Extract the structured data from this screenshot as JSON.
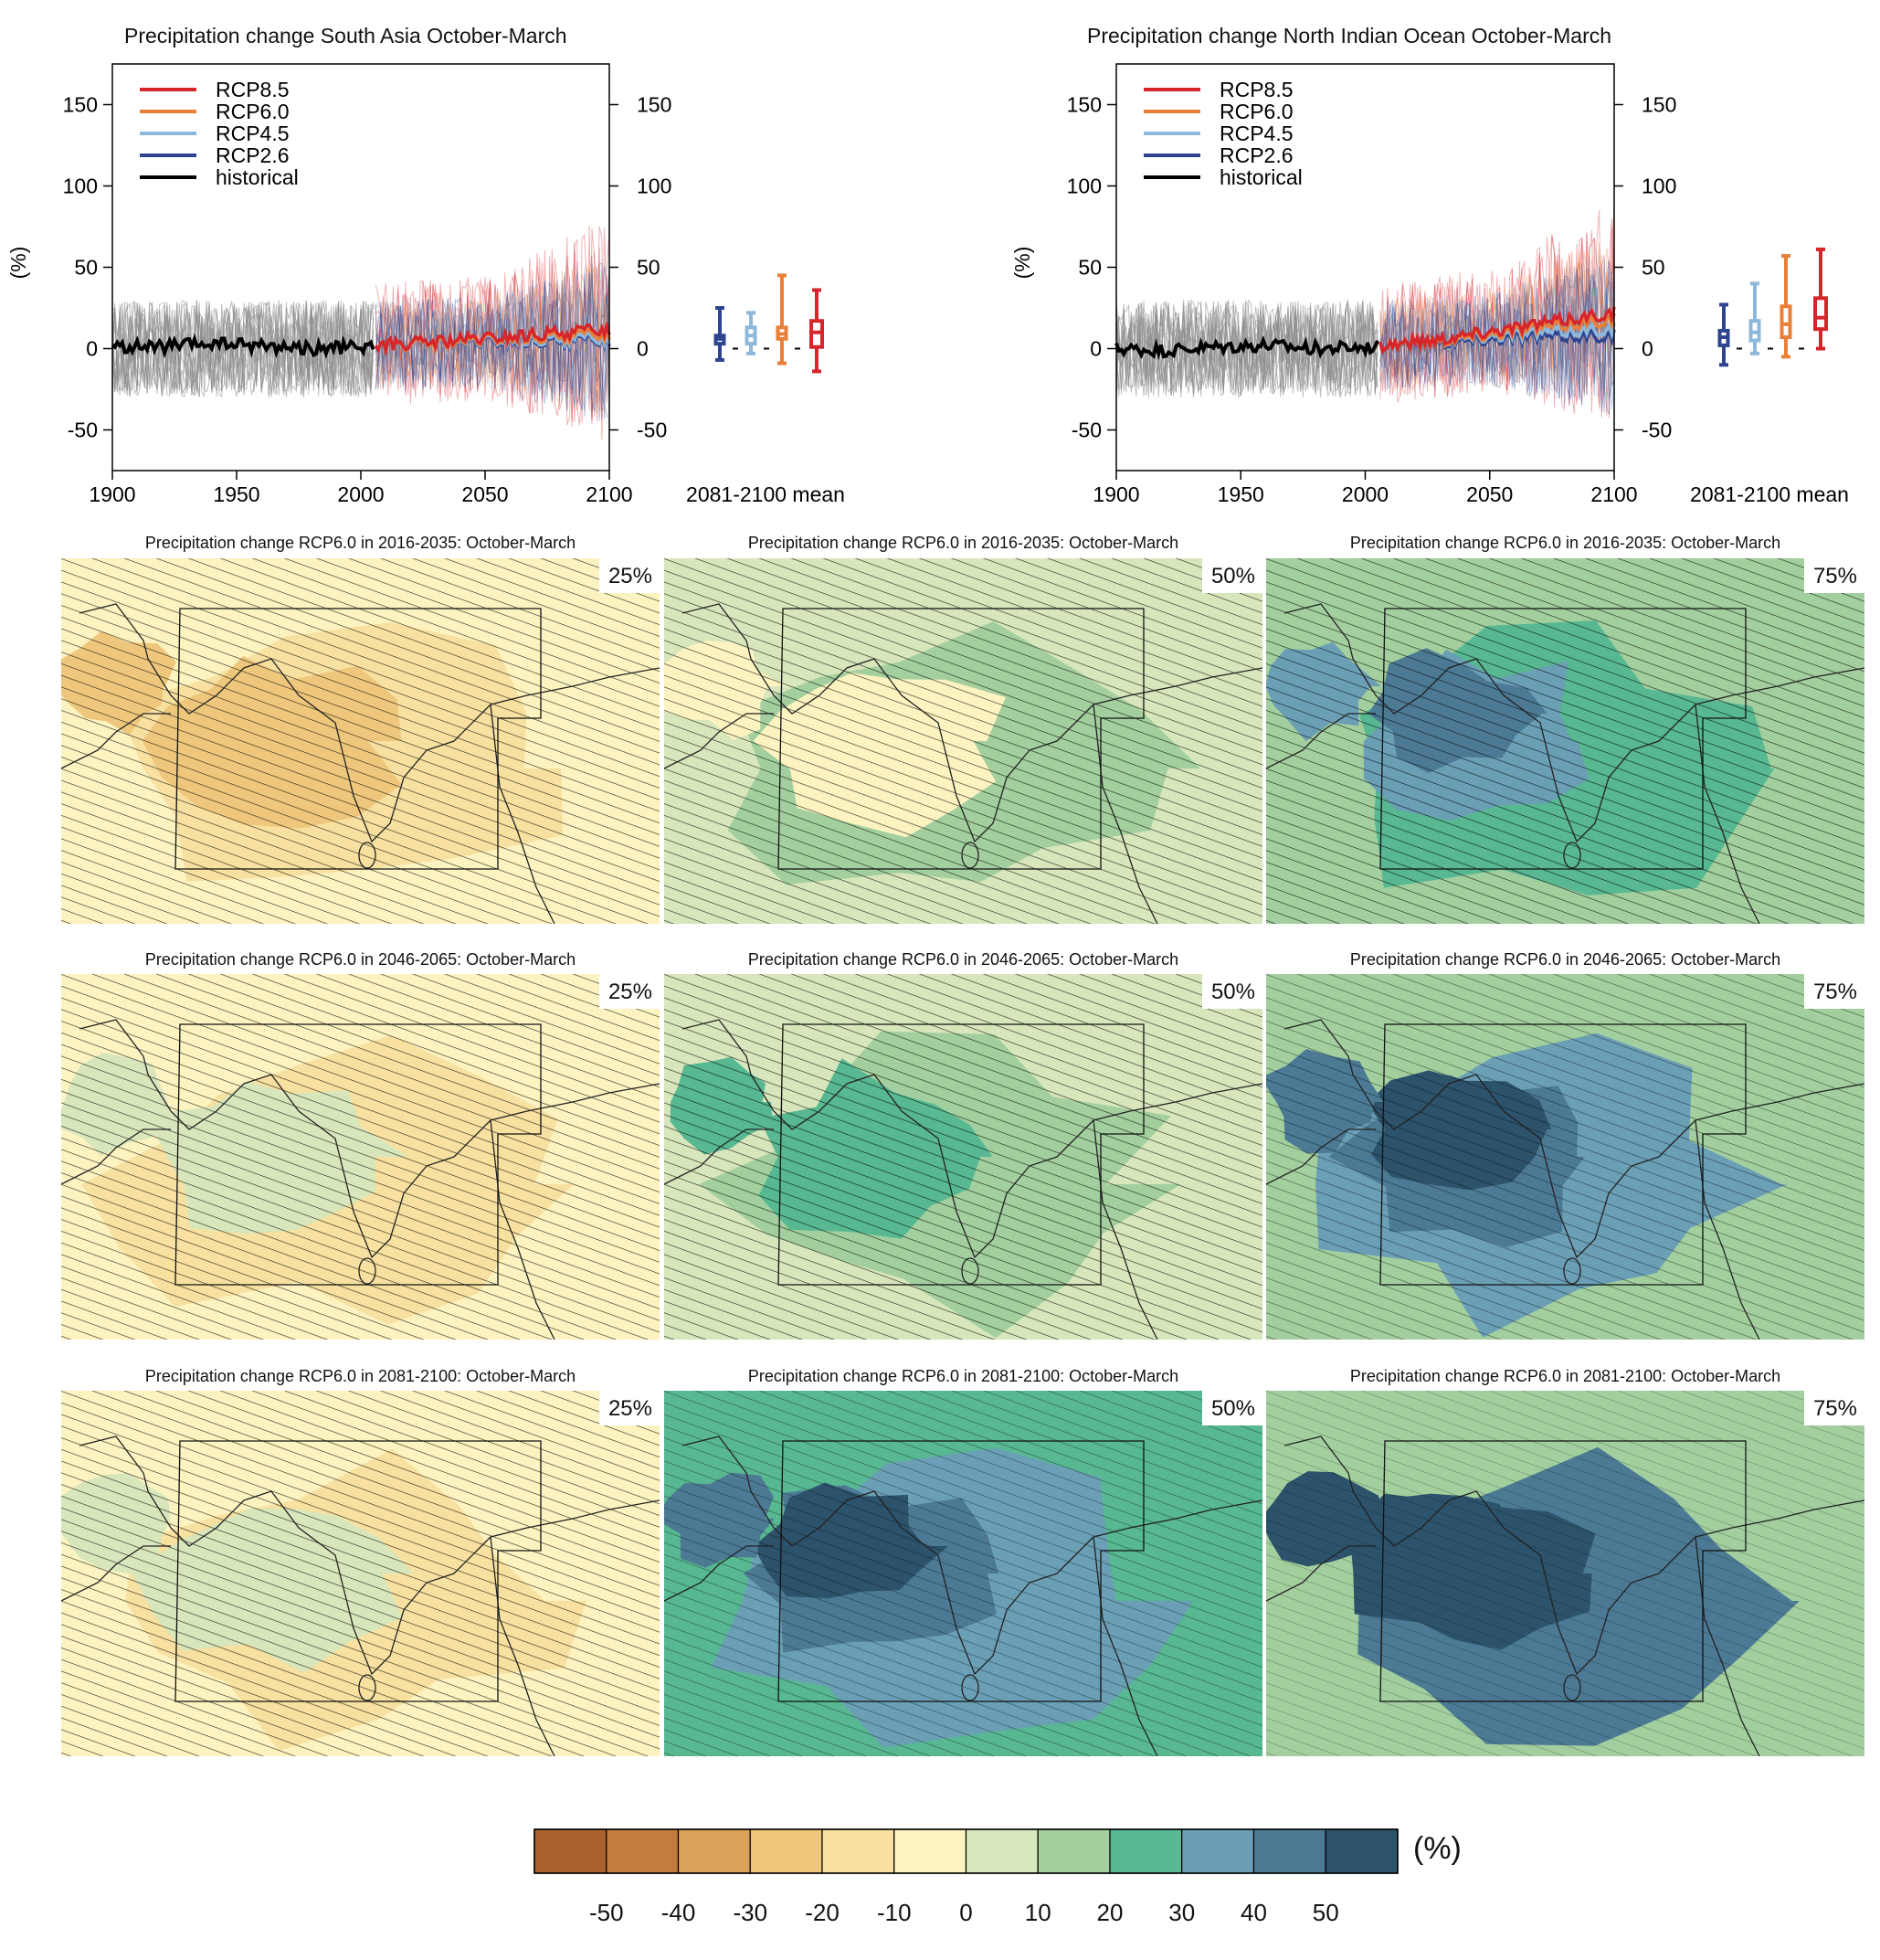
{
  "timeseries": [
    {
      "title": "Precipitation change South Asia October-March",
      "ylabel": "(%)",
      "x_ticks": [
        "1900",
        "1950",
        "2000",
        "2050",
        "2100"
      ],
      "y_ticks": [
        "150",
        "100",
        "50",
        "0",
        "-50"
      ],
      "boxplot_label": "2081-2100 mean",
      "legend": [
        "RCP8.5",
        "RCP6.0",
        "RCP4.5",
        "RCP2.6",
        "historical"
      ]
    },
    {
      "title": "Precipitation change North Indian Ocean October-March",
      "ylabel": "(%)",
      "x_ticks": [
        "1900",
        "1950",
        "2000",
        "2050",
        "2100"
      ],
      "y_ticks": [
        "150",
        "100",
        "50",
        "0",
        "-50"
      ],
      "boxplot_label": "2081-2100 mean",
      "legend": [
        "RCP8.5",
        "RCP6.0",
        "RCP4.5",
        "RCP2.6",
        "historical"
      ]
    }
  ],
  "chart_data": [
    {
      "type": "line",
      "title": "Precipitation change South Asia October-March",
      "xlabel": "",
      "ylabel": "(%)",
      "xlim": [
        1900,
        2100
      ],
      "ylim": [
        -75,
        175
      ],
      "series_colors": {
        "RCP8.5": "#d7262b",
        "RCP6.0": "#e8803a",
        "RCP4.5": "#8cb8dc",
        "RCP2.6": "#2e4490",
        "historical": "#000000"
      },
      "series": [
        {
          "name": "historical",
          "x": [
            1900,
            1920,
            1940,
            1960,
            1980,
            2005
          ],
          "y": [
            1,
            1,
            3,
            2,
            0,
            1
          ]
        },
        {
          "name": "RCP2.6",
          "x": [
            2006,
            2030,
            2060,
            2100
          ],
          "y": [
            2,
            3,
            4,
            5
          ]
        },
        {
          "name": "RCP4.5",
          "x": [
            2006,
            2030,
            2060,
            2100
          ],
          "y": [
            2,
            3,
            5,
            6
          ]
        },
        {
          "name": "RCP6.0",
          "x": [
            2006,
            2030,
            2060,
            2100
          ],
          "y": [
            2,
            3,
            6,
            9
          ]
        },
        {
          "name": "RCP8.5",
          "x": [
            2006,
            2030,
            2060,
            2100
          ],
          "y": [
            2,
            4,
            7,
            12
          ]
        }
      ],
      "boxplots": {
        "label": "2081-2100 mean",
        "items": [
          {
            "name": "RCP2.6",
            "min": -7,
            "q1": 3,
            "median": 6,
            "q3": 8,
            "max": 25
          },
          {
            "name": "RCP4.5",
            "min": -3,
            "q1": 3,
            "median": 8,
            "q3": 13,
            "max": 22
          },
          {
            "name": "RCP6.0",
            "min": -9,
            "q1": 6,
            "median": 9,
            "q3": 13,
            "max": 45
          },
          {
            "name": "RCP8.5",
            "min": -14,
            "q1": 1,
            "median": 10,
            "q3": 17,
            "max": 36
          }
        ]
      }
    },
    {
      "type": "line",
      "title": "Precipitation change North Indian Ocean October-March",
      "xlabel": "",
      "ylabel": "(%)",
      "xlim": [
        1900,
        2100
      ],
      "ylim": [
        -75,
        175
      ],
      "series_colors": {
        "RCP8.5": "#d7262b",
        "RCP6.0": "#e8803a",
        "RCP4.5": "#8cb8dc",
        "RCP2.6": "#2e4490",
        "historical": "#000000"
      },
      "series": [
        {
          "name": "historical",
          "x": [
            1900,
            1920,
            1940,
            1960,
            1980,
            2005
          ],
          "y": [
            0,
            -1,
            1,
            2,
            0,
            1
          ]
        },
        {
          "name": "RCP2.6",
          "x": [
            2006,
            2030,
            2060,
            2100
          ],
          "y": [
            2,
            4,
            7,
            8
          ]
        },
        {
          "name": "RCP4.5",
          "x": [
            2006,
            2030,
            2060,
            2100
          ],
          "y": [
            2,
            5,
            9,
            12
          ]
        },
        {
          "name": "RCP6.0",
          "x": [
            2006,
            2030,
            2060,
            2100
          ],
          "y": [
            2,
            5,
            11,
            18
          ]
        },
        {
          "name": "RCP8.5",
          "x": [
            2006,
            2030,
            2060,
            2100
          ],
          "y": [
            2,
            6,
            13,
            22
          ]
        }
      ],
      "boxplots": {
        "label": "2081-2100 mean",
        "items": [
          {
            "name": "RCP2.6",
            "min": -10,
            "q1": 2,
            "median": 7,
            "q3": 11,
            "max": 27
          },
          {
            "name": "RCP4.5",
            "min": -3,
            "q1": 5,
            "median": 10,
            "q3": 17,
            "max": 40
          },
          {
            "name": "RCP6.0",
            "min": -5,
            "q1": 7,
            "median": 15,
            "q3": 26,
            "max": 57
          },
          {
            "name": "RCP8.5",
            "min": 0,
            "q1": 12,
            "median": 19,
            "q3": 31,
            "max": 61
          }
        ]
      }
    },
    {
      "type": "heatmap",
      "description_rows": [
        "2016-2035",
        "2046-2065",
        "2081-2100"
      ],
      "percentiles": [
        "25%",
        "50%",
        "75%"
      ],
      "colorbar": {
        "unit": "(%)",
        "ticks": [
          "-50",
          "-40",
          "-30",
          "-20",
          "-10",
          "0",
          "10",
          "20",
          "30",
          "40",
          "50"
        ],
        "colors": [
          "#a9622c",
          "#c27c3e",
          "#d9a15b",
          "#eec77c",
          "#f7e0a0",
          "#fdf3c0",
          "#d8e6bc",
          "#a3cf9e",
          "#57b891",
          "#6b9fb6",
          "#4c7a94",
          "#2c536b"
        ]
      }
    }
  ],
  "maps": [
    {
      "title": "Precipitation change RCP6.0 in 2016-2035: October-March",
      "pct": "25%"
    },
    {
      "title": "Precipitation change RCP6.0 in 2016-2035: October-March",
      "pct": "50%"
    },
    {
      "title": "Precipitation change RCP6.0 in 2016-2035: October-March",
      "pct": "75%"
    },
    {
      "title": "Precipitation change RCP6.0 in 2046-2065: October-March",
      "pct": "25%"
    },
    {
      "title": "Precipitation change RCP6.0 in 2046-2065: October-March",
      "pct": "50%"
    },
    {
      "title": "Precipitation change RCP6.0 in 2046-2065: October-March",
      "pct": "75%"
    },
    {
      "title": "Precipitation change RCP6.0 in 2081-2100: October-March",
      "pct": "25%"
    },
    {
      "title": "Precipitation change RCP6.0 in 2081-2100: October-March",
      "pct": "50%"
    },
    {
      "title": "Precipitation change RCP6.0 in 2081-2100: October-March",
      "pct": "75%"
    }
  ]
}
